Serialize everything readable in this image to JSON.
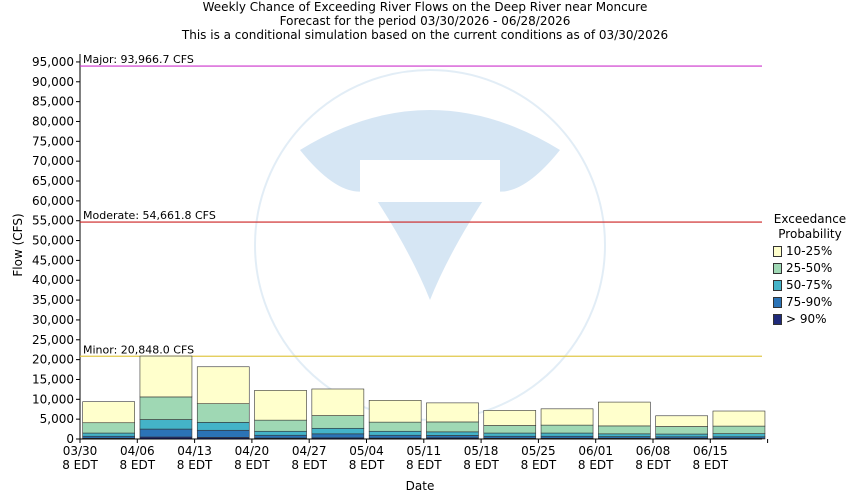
{
  "titles": {
    "line1": "Weekly Chance of Exceeding River Flows on the Deep River near Moncure",
    "line2": "Forecast for the period 03/30/2026 - 06/28/2026",
    "line3": "This is a conditional simulation based on the current conditions as of 03/30/2026"
  },
  "chart_data": {
    "type": "bar",
    "stacked": true,
    "title": "Weekly Chance of Exceeding River Flows on the Deep River near Moncure",
    "xlabel": "Date",
    "ylabel": "Flow (CFS)",
    "ylim": [
      0,
      97000
    ],
    "grid": false,
    "legend_position": "right",
    "categories": [
      [
        "03/30",
        "8 EDT"
      ],
      [
        "04/06",
        "8 EDT"
      ],
      [
        "04/13",
        "8 EDT"
      ],
      [
        "04/20",
        "8 EDT"
      ],
      [
        "04/27",
        "8 EDT"
      ],
      [
        "05/04",
        "8 EDT"
      ],
      [
        "05/11",
        "8 EDT"
      ],
      [
        "05/18",
        "8 EDT"
      ],
      [
        "05/25",
        "8 EDT"
      ],
      [
        "06/01",
        "8 EDT"
      ],
      [
        "06/08",
        "8 EDT"
      ],
      [
        "06/15",
        "8 EDT"
      ]
    ],
    "yticks": [
      "0",
      "5,000",
      "10,000",
      "15,000",
      "20,000",
      "25,000",
      "30,000",
      "35,000",
      "40,000",
      "45,000",
      "50,000",
      "55,000",
      "60,000",
      "65,000",
      "70,000",
      "75,000",
      "80,000",
      "85,000",
      "90,000",
      "95,000"
    ],
    "ytick_values": [
      0,
      5000,
      10000,
      15000,
      20000,
      25000,
      30000,
      35000,
      40000,
      45000,
      50000,
      55000,
      60000,
      65000,
      70000,
      75000,
      80000,
      85000,
      90000,
      95000
    ],
    "legend_title": [
      "Exceedance",
      "Probability"
    ],
    "series": [
      {
        "name": "> 90%",
        "color": "#1f2a7a",
        "values": [
          200,
          500,
          400,
          250,
          300,
          250,
          300,
          200,
          200,
          200,
          150,
          150
        ]
      },
      {
        "name": "75-90%",
        "color": "#2b73b6",
        "values": [
          500,
          2000,
          1800,
          700,
          1000,
          700,
          600,
          500,
          500,
          400,
          400,
          400
        ]
      },
      {
        "name": "50-75%",
        "color": "#44b3c8",
        "values": [
          800,
          2400,
          2000,
          1000,
          1400,
          1000,
          900,
          800,
          800,
          700,
          700,
          800
        ]
      },
      {
        "name": "25-50%",
        "color": "#9fd8b4",
        "values": [
          2600,
          5700,
          4700,
          2800,
          3200,
          2300,
          2500,
          1900,
          2000,
          2000,
          1900,
          1900
        ]
      },
      {
        "name": "10-25%",
        "color": "#ffffcc",
        "values": [
          5300,
          10300,
          9300,
          7500,
          6700,
          5500,
          4800,
          3800,
          4100,
          6000,
          2700,
          3800
        ]
      }
    ],
    "thresholds": [
      {
        "label": "Major: 93,966.7 CFS",
        "value": 93966.7,
        "color": "#cc33cc"
      },
      {
        "label": "Moderate: 54,661.8 CFS",
        "value": 54661.8,
        "color": "#cc2222"
      },
      {
        "label": "Minor: 20,848.0 CFS",
        "value": 20848.0,
        "color": "#e0c84a"
      }
    ]
  }
}
